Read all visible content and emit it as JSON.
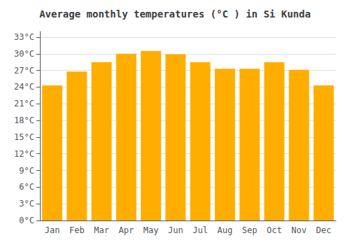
{
  "chart_data": {
    "type": "bar",
    "title": "Average monthly temperatures (°C ) in Si Kunda",
    "categories": [
      "Jan",
      "Feb",
      "Mar",
      "Apr",
      "May",
      "Jun",
      "Jul",
      "Aug",
      "Sep",
      "Oct",
      "Nov",
      "Dec"
    ],
    "values": [
      24.3,
      26.8,
      28.5,
      30.0,
      30.5,
      29.9,
      28.5,
      27.3,
      27.3,
      28.5,
      27.1,
      24.3
    ],
    "color": "#FFAE00",
    "ylim": [
      0,
      34
    ],
    "yticks": [
      {
        "value": 0,
        "label": "0°C"
      },
      {
        "value": 3,
        "label": "3°C"
      },
      {
        "value": 6,
        "label": "6°C"
      },
      {
        "value": 9,
        "label": "9°C"
      },
      {
        "value": 12,
        "label": "12°C"
      },
      {
        "value": 15,
        "label": "15°C"
      },
      {
        "value": 18,
        "label": "18°C"
      },
      {
        "value": 21,
        "label": "21°C"
      },
      {
        "value": 24,
        "label": "24°C"
      },
      {
        "value": 27,
        "label": "27°C"
      },
      {
        "value": 30,
        "label": "30°C"
      },
      {
        "value": 33,
        "label": "33°C"
      }
    ],
    "grid": true
  }
}
